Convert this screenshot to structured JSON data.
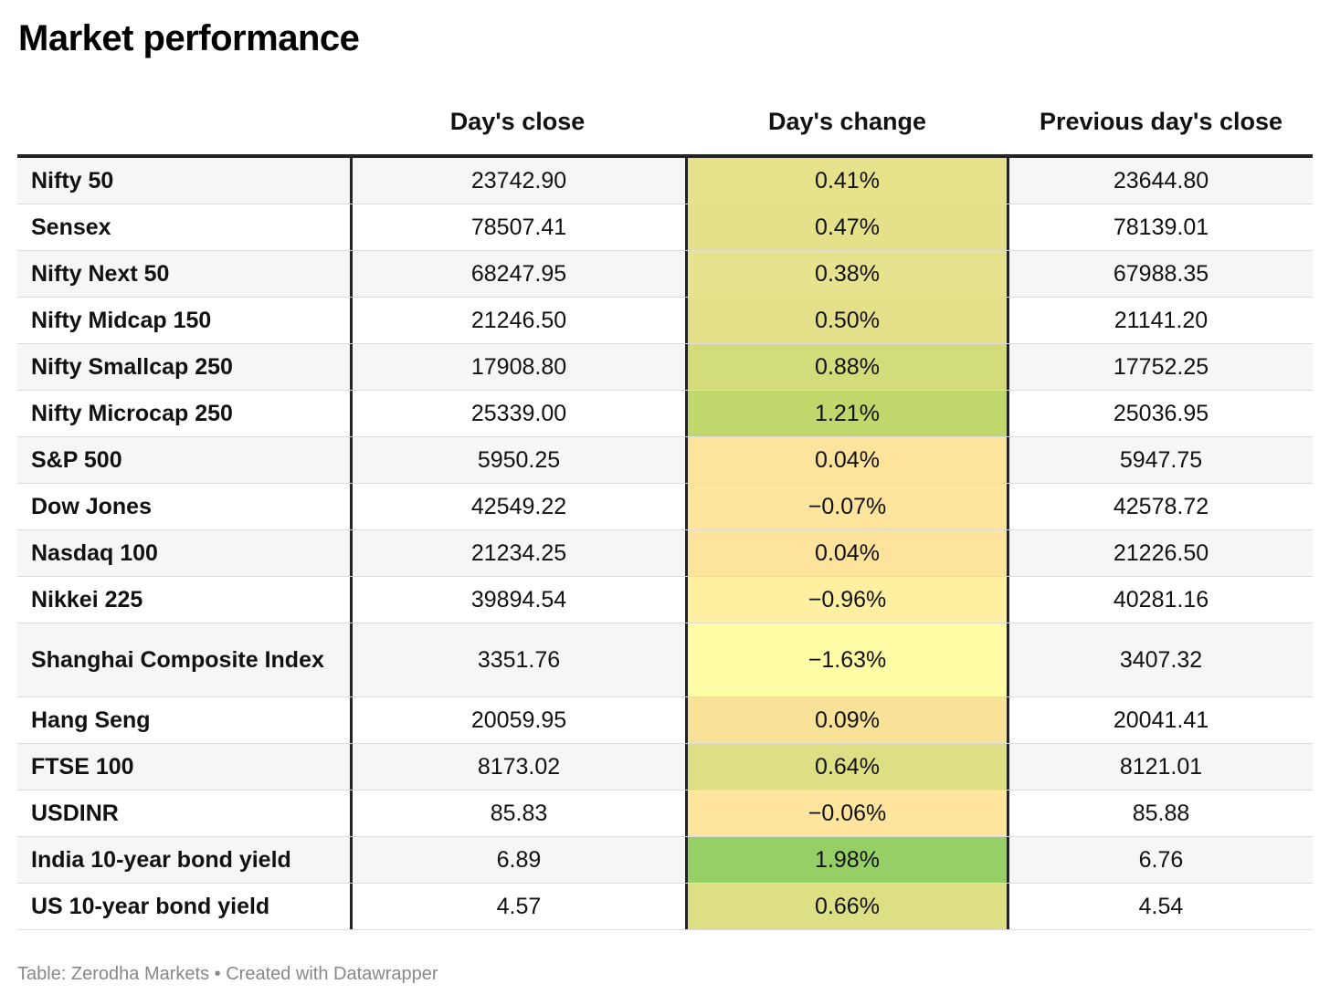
{
  "title": "Market performance",
  "columns": [
    "",
    "Day's close",
    "Day's change",
    "Previous day's close"
  ],
  "source": "Table: Zerodha Markets • Created with Datawrapper",
  "chart_data": {
    "type": "table",
    "title": "Market performance",
    "headers": [
      "",
      "Day's close",
      "Day's change",
      "Previous day's close"
    ],
    "rows": [
      {
        "name": "Nifty 50",
        "close": "23742.90",
        "change": "0.41%",
        "prev": "23644.80",
        "change_value": 0.41,
        "color": "#e6e28c"
      },
      {
        "name": "Sensex",
        "close": "78507.41",
        "change": "0.47%",
        "prev": "78139.01",
        "change_value": 0.47,
        "color": "#e4e18a"
      },
      {
        "name": "Nifty Next 50",
        "close": "68247.95",
        "change": "0.38%",
        "prev": "67988.35",
        "change_value": 0.38,
        "color": "#e7e28d"
      },
      {
        "name": "Nifty Midcap 150",
        "close": "21246.50",
        "change": "0.50%",
        "prev": "21141.20",
        "change_value": 0.5,
        "color": "#e3e089"
      },
      {
        "name": "Nifty Smallcap 250",
        "close": "17908.80",
        "change": "0.88%",
        "prev": "17752.25",
        "change_value": 0.88,
        "color": "#d2dc7a"
      },
      {
        "name": "Nifty Microcap 250",
        "close": "25339.00",
        "change": "1.21%",
        "prev": "25036.95",
        "change_value": 1.21,
        "color": "#c0d76c"
      },
      {
        "name": "S&P 500",
        "close": "5950.25",
        "change": "0.04%",
        "prev": "5947.75",
        "change_value": 0.04,
        "color": "#fde39c"
      },
      {
        "name": "Dow Jones",
        "close": "42549.22",
        "change": "−0.07%",
        "prev": "42578.72",
        "change_value": -0.07,
        "color": "#fee49d"
      },
      {
        "name": "Nasdaq 100",
        "close": "21234.25",
        "change": "0.04%",
        "prev": "21226.50",
        "change_value": 0.04,
        "color": "#fde39c"
      },
      {
        "name": "Nikkei 225",
        "close": "39894.54",
        "change": "−0.96%",
        "prev": "40281.16",
        "change_value": -0.96,
        "color": "#fef0a0"
      },
      {
        "name": "Shanghai Composite Index",
        "close": "3351.76",
        "change": "−1.63%",
        "prev": "3407.32",
        "change_value": -1.63,
        "color": "#fefca4",
        "tall": true
      },
      {
        "name": "Hang Seng",
        "close": "20059.95",
        "change": "0.09%",
        "prev": "20041.41",
        "change_value": 0.09,
        "color": "#f8e298"
      },
      {
        "name": "FTSE 100",
        "close": "8173.02",
        "change": "0.64%",
        "prev": "8121.01",
        "change_value": 0.64,
        "color": "#dedf85"
      },
      {
        "name": "USDINR",
        "close": "85.83",
        "change": "−0.06%",
        "prev": "85.88",
        "change_value": -0.06,
        "color": "#fee49d"
      },
      {
        "name": "India 10-year bond yield",
        "close": "6.89",
        "change": "1.98%",
        "prev": "6.76",
        "change_value": 1.98,
        "color": "#96cf65"
      },
      {
        "name": "US 10-year bond yield",
        "close": "4.57",
        "change": "0.66%",
        "prev": "4.54",
        "change_value": 0.66,
        "color": "#dddf85"
      }
    ]
  }
}
